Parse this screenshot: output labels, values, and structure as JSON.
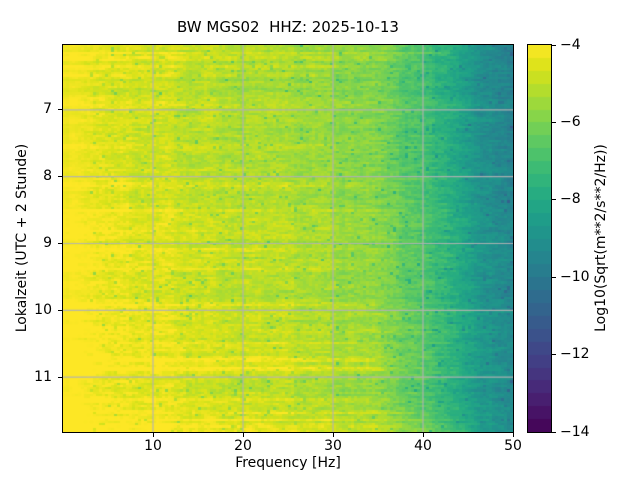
{
  "chart_data": {
    "type": "heatmap",
    "title": "BW MGS02  HHZ: 2025-10-13",
    "xlabel": "Frequency [Hz]",
    "ylabel": "Lokalzeit (UTC + 2 Stunde)",
    "xlim": [
      0,
      50
    ],
    "xticks": {
      "values": [
        10,
        20,
        30,
        40,
        50
      ],
      "labels": [
        "10",
        "20",
        "30",
        "40",
        "50"
      ]
    },
    "time_range_local_hours": [
      6.03,
      11.82
    ],
    "yticks": {
      "values": [
        7,
        8,
        9,
        10,
        11
      ],
      "labels": [
        "7",
        "8",
        "9",
        "10",
        "11"
      ]
    },
    "y_axis_inverted": true,
    "grid": true,
    "grid_color": "#b2b2b2",
    "colormap": "viridis",
    "colormap_anchors": [
      "#440154",
      "#48186a",
      "#472d7b",
      "#424086",
      "#3b528b",
      "#33638d",
      "#2c728e",
      "#26828e",
      "#21918c",
      "#1fa088",
      "#28ae80",
      "#3fbc73",
      "#5ec962",
      "#84d44b",
      "#addc30",
      "#d8e219",
      "#fde725"
    ],
    "colorbar": {
      "label": "Log10(Sqrt(m**2/s**2/Hz))",
      "vmin": -14,
      "vmax": -4,
      "steps": 30,
      "ticks": {
        "values": [
          -4,
          -6,
          -8,
          -10,
          -12,
          -14
        ],
        "labels": [
          "−4",
          "−6",
          "−8",
          "−10",
          "−12",
          "−14"
        ]
      }
    },
    "spectral_profile": {
      "freq_hz": [
        0,
        2,
        4,
        7,
        10,
        14,
        18,
        22,
        26,
        30,
        33,
        35,
        37,
        39,
        41,
        43,
        45,
        47,
        50
      ],
      "log10_val": [
        -3.95,
        -4.05,
        -4.2,
        -4.4,
        -4.55,
        -4.75,
        -4.95,
        -5.1,
        -5.3,
        -5.45,
        -5.6,
        -5.8,
        -6.15,
        -6.6,
        -7.15,
        -7.6,
        -8.2,
        -8.8,
        -9.4
      ]
    },
    "events": [
      {
        "time": 6.16,
        "amp": 0.9,
        "fmax_hz": 42,
        "halfwidth_h": 0.015
      },
      {
        "time": 6.23,
        "amp": 0.7,
        "fmax_hz": 36,
        "halfwidth_h": 0.015
      },
      {
        "time": 6.36,
        "amp": 0.45,
        "fmax_hz": 30,
        "halfwidth_h": 0.02
      },
      {
        "time": 6.48,
        "amp": 0.4,
        "fmax_hz": 28,
        "halfwidth_h": 0.02
      },
      {
        "time": 7.55,
        "amp": 0.35,
        "fmax_hz": 30,
        "halfwidth_h": 0.02
      },
      {
        "time": 8.12,
        "amp": 0.55,
        "fmax_hz": 34,
        "halfwidth_h": 0.02
      },
      {
        "time": 8.5,
        "amp": 0.35,
        "fmax_hz": 30,
        "halfwidth_h": 0.02
      },
      {
        "time": 8.8,
        "amp": 0.45,
        "fmax_hz": 32,
        "halfwidth_h": 0.025
      },
      {
        "time": 9.08,
        "amp": 0.5,
        "fmax_hz": 30,
        "halfwidth_h": 0.02
      },
      {
        "time": 9.38,
        "amp": 0.45,
        "fmax_hz": 30,
        "halfwidth_h": 0.02
      },
      {
        "time": 9.92,
        "amp": 0.5,
        "fmax_hz": 33,
        "halfwidth_h": 0.025
      },
      {
        "time": 10.5,
        "amp": 0.4,
        "fmax_hz": 32,
        "halfwidth_h": 0.02
      },
      {
        "time": 10.74,
        "amp": 0.8,
        "fmax_hz": 34,
        "halfwidth_h": 0.03
      },
      {
        "time": 10.87,
        "amp": 0.85,
        "fmax_hz": 35,
        "halfwidth_h": 0.025
      },
      {
        "time": 11.33,
        "amp": 0.55,
        "fmax_hz": 34,
        "halfwidth_h": 0.02
      },
      {
        "time": 11.52,
        "amp": 0.6,
        "fmax_hz": 38,
        "halfwidth_h": 0.02
      },
      {
        "time": 11.63,
        "amp": 0.7,
        "fmax_hz": 42,
        "halfwidth_h": 0.02
      },
      {
        "time": 11.72,
        "amp": 0.65,
        "fmax_hz": 44,
        "halfwidth_h": 0.02
      },
      {
        "time": 11.79,
        "amp": 0.7,
        "fmax_hz": 45,
        "halfwidth_h": 0.025
      }
    ],
    "noise_seed": 7
  }
}
